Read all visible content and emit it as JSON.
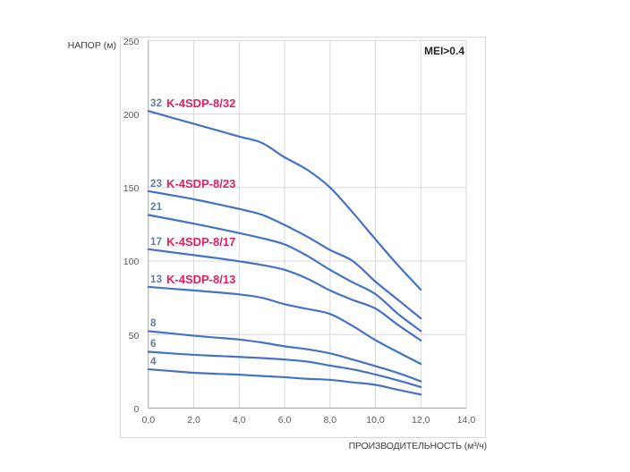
{
  "chart_data": {
    "type": "line",
    "title": "",
    "ylabel": "НАПОР (м)",
    "xlabel": "ПРОИЗВОДИТЕЛЬНОСТЬ (м³/ч)",
    "annotation": "MEI>0.4",
    "xlim": [
      0,
      14
    ],
    "ylim": [
      0,
      250
    ],
    "grid": true,
    "legend_position": "inline-labels",
    "x_tick_labels": [
      "0,0",
      "2,0",
      "4,0",
      "6,0",
      "8,0",
      "10,0",
      "12,0",
      "14,0"
    ],
    "x_tick_values": [
      0,
      2,
      4,
      6,
      8,
      10,
      12,
      14
    ],
    "y_tick_labels": [
      "0",
      "50",
      "100",
      "150",
      "200",
      "250"
    ],
    "y_tick_values": [
      0,
      50,
      100,
      150,
      200,
      250
    ],
    "x": [
      0,
      1,
      2,
      3,
      4,
      5,
      6,
      7,
      8,
      9,
      10,
      11,
      12
    ],
    "series": [
      {
        "stages": "32",
        "model": "K-4SDP-8/32",
        "values": [
          202,
          197.6,
          193.3,
          189,
          184.6,
          180.3,
          170.5,
          162,
          150,
          133,
          114.8,
          97,
          80.5
        ]
      },
      {
        "stages": "23",
        "model": "K-4SDP-8/23",
        "values": [
          147.5,
          144.8,
          142,
          138.8,
          135.4,
          131.5,
          124.5,
          116.5,
          107.5,
          100,
          86,
          73.5,
          61
        ]
      },
      {
        "stages": "21",
        "model": "",
        "values": [
          131.3,
          128.4,
          125.4,
          122.3,
          119,
          115.5,
          111.3,
          103.5,
          94,
          85.5,
          77.5,
          64,
          52.4
        ]
      },
      {
        "stages": "17",
        "model": "K-4SDP-8/17",
        "values": [
          108,
          106,
          104,
          102,
          99.8,
          97.3,
          94,
          88,
          80,
          73.5,
          67.7,
          56.5,
          46
        ]
      },
      {
        "stages": "13",
        "model": "K-4SDP-8/13",
        "values": [
          82.4,
          81.2,
          80,
          78.7,
          77.3,
          75,
          70.6,
          67.4,
          64,
          55.8,
          46.2,
          38,
          30
        ]
      },
      {
        "stages": "8",
        "model": "",
        "values": [
          52.3,
          50.8,
          49.2,
          47.9,
          46.6,
          44.6,
          42,
          40,
          37.2,
          33,
          28.5,
          23.8,
          18.2
        ]
      },
      {
        "stages": "6",
        "model": "",
        "values": [
          38.3,
          37.2,
          36.2,
          35.5,
          34.8,
          34,
          33,
          31.6,
          28.9,
          26.3,
          22.8,
          18.8,
          14.3
        ]
      },
      {
        "stages": "4",
        "model": "",
        "values": [
          26.4,
          25.2,
          24,
          23.3,
          22.7,
          21.8,
          21,
          19.9,
          19.2,
          17.5,
          15.8,
          12.4,
          9.2
        ]
      }
    ],
    "colors": {
      "curve": "#4472c4",
      "model_label": "#de2063",
      "stage_label": "#617e9d",
      "grid": "#d9d9d9",
      "axis": "#a6a6a6",
      "tick_text": "#595959",
      "axis_title_text": "#404040",
      "annotation_text": "#262626",
      "frame_border": "#d9d9d9"
    }
  }
}
